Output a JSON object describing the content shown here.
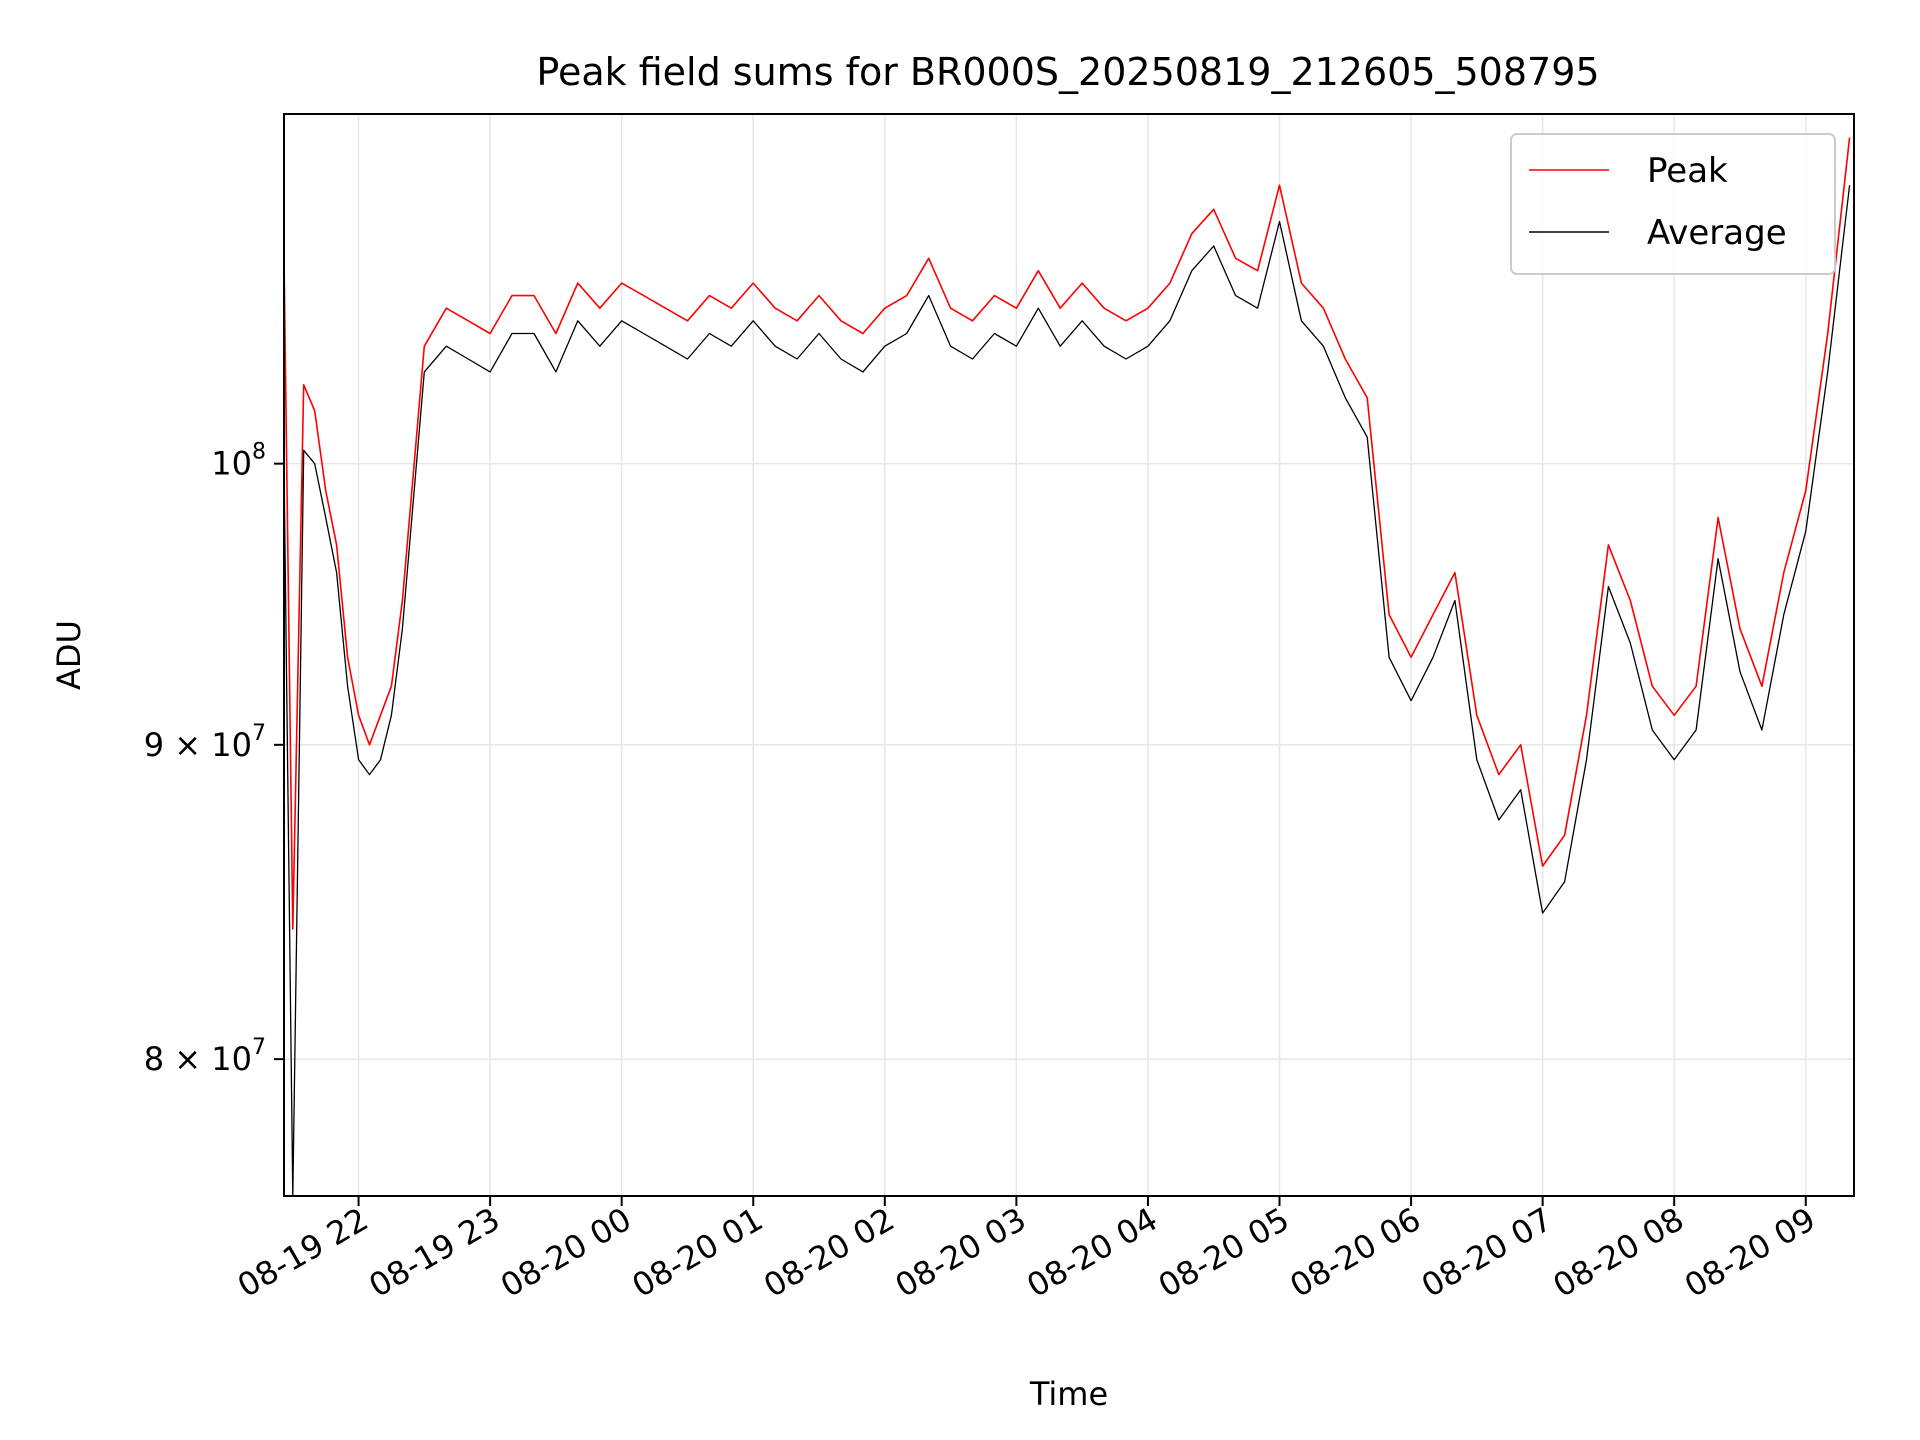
{
  "chart_data": {
    "type": "line",
    "title": "Peak field sums for BR000S_20250819_212605_508795",
    "xlabel": "Time",
    "ylabel": "ADU",
    "y_scale": "log",
    "ylim": [
      76000000,
      114000000
    ],
    "xlim": [
      "2025-08-19 21:26",
      "2025-08-20 09:22"
    ],
    "grid": true,
    "legend_position": "top-right",
    "x_ticks": [
      "08-19 22",
      "08-19 23",
      "08-20 00",
      "08-20 01",
      "08-20 02",
      "08-20 03",
      "08-20 04",
      "08-20 05",
      "08-20 06",
      "08-20 07",
      "08-20 08",
      "08-20 09"
    ],
    "x_tick_times": [
      "2025-08-19 22:00",
      "2025-08-19 23:00",
      "2025-08-20 00:00",
      "2025-08-20 01:00",
      "2025-08-20 02:00",
      "2025-08-20 03:00",
      "2025-08-20 04:00",
      "2025-08-20 05:00",
      "2025-08-20 06:00",
      "2025-08-20 07:00",
      "2025-08-20 08:00",
      "2025-08-20 09:00"
    ],
    "y_ticks": [
      {
        "value": 80000000,
        "base": "8 × 10",
        "exp": "7"
      },
      {
        "value": 90000000,
        "base": "9 × 10",
        "exp": "7"
      },
      {
        "value": 100000000,
        "base": "10",
        "exp": "8"
      }
    ],
    "series": [
      {
        "name": "Peak",
        "color": "#ff0000",
        "x": [
          "2025-08-19 21:26",
          "2025-08-19 21:30",
          "2025-08-19 21:35",
          "2025-08-19 21:40",
          "2025-08-19 21:45",
          "2025-08-19 21:50",
          "2025-08-19 21:55",
          "2025-08-19 22:00",
          "2025-08-19 22:05",
          "2025-08-19 22:10",
          "2025-08-19 22:15",
          "2025-08-19 22:20",
          "2025-08-19 22:30",
          "2025-08-19 22:40",
          "2025-08-19 22:50",
          "2025-08-19 23:00",
          "2025-08-19 23:10",
          "2025-08-19 23:20",
          "2025-08-19 23:30",
          "2025-08-19 23:40",
          "2025-08-19 23:50",
          "2025-08-20 00:00",
          "2025-08-20 00:10",
          "2025-08-20 00:20",
          "2025-08-20 00:30",
          "2025-08-20 00:40",
          "2025-08-20 00:50",
          "2025-08-20 01:00",
          "2025-08-20 01:10",
          "2025-08-20 01:20",
          "2025-08-20 01:30",
          "2025-08-20 01:40",
          "2025-08-20 01:50",
          "2025-08-20 02:00",
          "2025-08-20 02:10",
          "2025-08-20 02:20",
          "2025-08-20 02:30",
          "2025-08-20 02:40",
          "2025-08-20 02:50",
          "2025-08-20 03:00",
          "2025-08-20 03:10",
          "2025-08-20 03:20",
          "2025-08-20 03:30",
          "2025-08-20 03:40",
          "2025-08-20 03:50",
          "2025-08-20 04:00",
          "2025-08-20 04:10",
          "2025-08-20 04:20",
          "2025-08-20 04:30",
          "2025-08-20 04:40",
          "2025-08-20 04:50",
          "2025-08-20 05:00",
          "2025-08-20 05:10",
          "2025-08-20 05:20",
          "2025-08-20 05:30",
          "2025-08-20 05:40",
          "2025-08-20 05:50",
          "2025-08-20 06:00",
          "2025-08-20 06:10",
          "2025-08-20 06:20",
          "2025-08-20 06:30",
          "2025-08-20 06:40",
          "2025-08-20 06:50",
          "2025-08-20 07:00",
          "2025-08-20 07:10",
          "2025-08-20 07:20",
          "2025-08-20 07:30",
          "2025-08-20 07:40",
          "2025-08-20 07:50",
          "2025-08-20 08:00",
          "2025-08-20 08:10",
          "2025-08-20 08:20",
          "2025-08-20 08:30",
          "2025-08-20 08:40",
          "2025-08-20 08:50",
          "2025-08-20 09:00",
          "2025-08-20 09:10",
          "2025-08-20 09:20"
        ],
        "y": [
          108000000,
          84000000,
          103000000,
          102000000,
          99000000,
          97000000,
          93000000,
          91000000,
          90000000,
          91000000,
          92000000,
          95000000,
          104500000,
          106000000,
          105500000,
          105000000,
          106500000,
          106500000,
          105000000,
          107000000,
          106000000,
          107000000,
          106500000,
          106000000,
          105500000,
          106500000,
          106000000,
          107000000,
          106000000,
          105500000,
          106500000,
          105500000,
          105000000,
          106000000,
          106500000,
          108000000,
          106000000,
          105500000,
          106500000,
          106000000,
          107500000,
          106000000,
          107000000,
          106000000,
          105500000,
          106000000,
          107000000,
          109000000,
          110000000,
          108000000,
          107500000,
          111000000,
          107000000,
          106000000,
          104000000,
          102500000,
          94500000,
          93000000,
          94500000,
          96000000,
          91000000,
          89000000,
          90000000,
          86000000,
          87000000,
          91000000,
          97000000,
          95000000,
          92000000,
          91000000,
          92000000,
          98000000,
          94000000,
          92000000,
          96000000,
          99000000,
          105000000,
          113000000
        ]
      },
      {
        "name": "Average",
        "color": "#000000",
        "x": [
          "2025-08-19 21:26",
          "2025-08-19 21:30",
          "2025-08-19 21:35",
          "2025-08-19 21:40",
          "2025-08-19 21:45",
          "2025-08-19 21:50",
          "2025-08-19 21:55",
          "2025-08-19 22:00",
          "2025-08-19 22:05",
          "2025-08-19 22:10",
          "2025-08-19 22:15",
          "2025-08-19 22:20",
          "2025-08-19 22:30",
          "2025-08-19 22:40",
          "2025-08-19 22:50",
          "2025-08-19 23:00",
          "2025-08-19 23:10",
          "2025-08-19 23:20",
          "2025-08-19 23:30",
          "2025-08-19 23:40",
          "2025-08-19 23:50",
          "2025-08-20 00:00",
          "2025-08-20 00:10",
          "2025-08-20 00:20",
          "2025-08-20 00:30",
          "2025-08-20 00:40",
          "2025-08-20 00:50",
          "2025-08-20 01:00",
          "2025-08-20 01:10",
          "2025-08-20 01:20",
          "2025-08-20 01:30",
          "2025-08-20 01:40",
          "2025-08-20 01:50",
          "2025-08-20 02:00",
          "2025-08-20 02:10",
          "2025-08-20 02:20",
          "2025-08-20 02:30",
          "2025-08-20 02:40",
          "2025-08-20 02:50",
          "2025-08-20 03:00",
          "2025-08-20 03:10",
          "2025-08-20 03:20",
          "2025-08-20 03:30",
          "2025-08-20 03:40",
          "2025-08-20 03:50",
          "2025-08-20 04:00",
          "2025-08-20 04:10",
          "2025-08-20 04:20",
          "2025-08-20 04:30",
          "2025-08-20 04:40",
          "2025-08-20 04:50",
          "2025-08-20 05:00",
          "2025-08-20 05:10",
          "2025-08-20 05:20",
          "2025-08-20 05:30",
          "2025-08-20 05:40",
          "2025-08-20 05:50",
          "2025-08-20 06:00",
          "2025-08-20 06:10",
          "2025-08-20 06:20",
          "2025-08-20 06:30",
          "2025-08-20 06:40",
          "2025-08-20 06:50",
          "2025-08-20 07:00",
          "2025-08-20 07:10",
          "2025-08-20 07:20",
          "2025-08-20 07:30",
          "2025-08-20 07:40",
          "2025-08-20 07:50",
          "2025-08-20 08:00",
          "2025-08-20 08:10",
          "2025-08-20 08:20",
          "2025-08-20 08:30",
          "2025-08-20 08:40",
          "2025-08-20 08:50",
          "2025-08-20 09:00",
          "2025-08-20 09:10",
          "2025-08-20 09:20"
        ],
        "y": [
          100000000,
          76000000,
          100500000,
          100000000,
          98000000,
          96000000,
          92000000,
          89500000,
          89000000,
          89500000,
          91000000,
          94000000,
          103500000,
          104500000,
          104000000,
          103500000,
          105000000,
          105000000,
          103500000,
          105500000,
          104500000,
          105500000,
          105000000,
          104500000,
          104000000,
          105000000,
          104500000,
          105500000,
          104500000,
          104000000,
          105000000,
          104000000,
          103500000,
          104500000,
          105000000,
          106500000,
          104500000,
          104000000,
          105000000,
          104500000,
          106000000,
          104500000,
          105500000,
          104500000,
          104000000,
          104500000,
          105500000,
          107500000,
          108500000,
          106500000,
          106000000,
          109500000,
          105500000,
          104500000,
          102500000,
          101000000,
          93000000,
          91500000,
          93000000,
          95000000,
          89500000,
          87500000,
          88500000,
          84500000,
          85500000,
          89500000,
          95500000,
          93500000,
          90500000,
          89500000,
          90500000,
          96500000,
          92500000,
          90500000,
          94500000,
          97500000,
          103500000,
          111000000
        ]
      }
    ]
  }
}
